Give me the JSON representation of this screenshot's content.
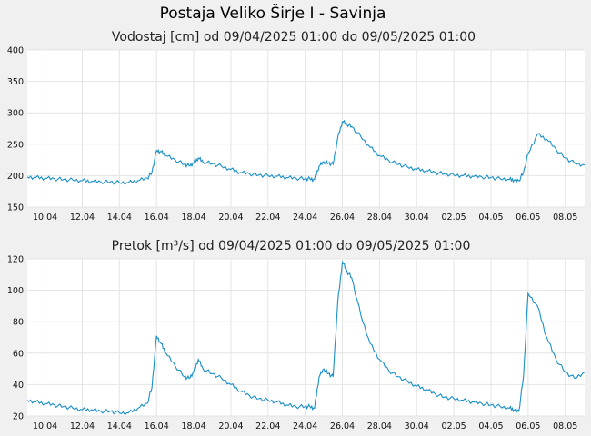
{
  "page": {
    "title": "Postaja Veliko Širje I - Savinja"
  },
  "colors": {
    "background": "#f0f0f0",
    "plot_background": "#ffffff",
    "grid": "#e4e4e4",
    "series": "#1a8fc8"
  },
  "chart_data": [
    {
      "id": "vodostaj",
      "type": "line",
      "title": "Vodostaj [cm] od 09/04/2025 01:00 do 09/05/2025 01:00",
      "xlabel": "",
      "ylabel": "",
      "ylim": [
        150,
        400
      ],
      "yticks": [
        150,
        200,
        250,
        300,
        350,
        400
      ],
      "xlim": [
        "2025-04-09 01:00",
        "2025-05-09 01:00"
      ],
      "xticks": [
        {
          "date": "2025-04-10",
          "label": "10.04"
        },
        {
          "date": "2025-04-12",
          "label": "12.04"
        },
        {
          "date": "2025-04-14",
          "label": "14.04"
        },
        {
          "date": "2025-04-16",
          "label": "16.04"
        },
        {
          "date": "2025-04-18",
          "label": "18.04"
        },
        {
          "date": "2025-04-20",
          "label": "20.04"
        },
        {
          "date": "2025-04-22",
          "label": "22.04"
        },
        {
          "date": "2025-04-24",
          "label": "24.04"
        },
        {
          "date": "2025-04-26",
          "label": "26.04"
        },
        {
          "date": "2025-04-28",
          "label": "28.04"
        },
        {
          "date": "2025-04-30",
          "label": "30.04"
        },
        {
          "date": "2025-05-02",
          "label": "02.05"
        },
        {
          "date": "2025-05-04",
          "label": "04.05"
        },
        {
          "date": "2025-05-06",
          "label": "06.05"
        },
        {
          "date": "2025-05-08",
          "label": "08.05"
        }
      ],
      "grid": true,
      "series": [
        {
          "x": [
            "2025-04-09 01:00",
            "2025-04-09 12:00",
            "2025-04-10 00:00",
            "2025-04-10 12:00",
            "2025-04-11 00:00",
            "2025-04-11 12:00",
            "2025-04-12 00:00",
            "2025-04-12 12:00",
            "2025-04-13 00:00",
            "2025-04-13 12:00",
            "2025-04-14 00:00",
            "2025-04-14 12:00",
            "2025-04-15 00:00",
            "2025-04-15 12:00",
            "2025-04-15 18:00",
            "2025-04-16 00:00",
            "2025-04-16 06:00",
            "2025-04-16 12:00",
            "2025-04-17 00:00",
            "2025-04-17 12:00",
            "2025-04-17 18:00",
            "2025-04-18 00:00",
            "2025-04-18 06:00",
            "2025-04-18 12:00",
            "2025-04-19 00:00",
            "2025-04-19 12:00",
            "2025-04-20 00:00",
            "2025-04-20 12:00",
            "2025-04-21 00:00",
            "2025-04-21 12:00",
            "2025-04-22 00:00",
            "2025-04-22 12:00",
            "2025-04-23 00:00",
            "2025-04-23 12:00",
            "2025-04-24 00:00",
            "2025-04-24 06:00",
            "2025-04-24 12:00",
            "2025-04-24 18:00",
            "2025-04-25 00:00",
            "2025-04-25 06:00",
            "2025-04-25 12:00",
            "2025-04-25 18:00",
            "2025-04-26 00:00",
            "2025-04-26 06:00",
            "2025-04-26 12:00",
            "2025-04-27 00:00",
            "2025-04-27 12:00",
            "2025-04-28 00:00",
            "2025-04-28 12:00",
            "2025-04-29 00:00",
            "2025-04-29 12:00",
            "2025-04-30 00:00",
            "2025-04-30 12:00",
            "2025-05-01 00:00",
            "2025-05-01 12:00",
            "2025-05-02 00:00",
            "2025-05-02 12:00",
            "2025-05-03 00:00",
            "2025-05-03 12:00",
            "2025-05-04 00:00",
            "2025-05-04 12:00",
            "2025-05-05 00:00",
            "2025-05-05 06:00",
            "2025-05-05 12:00",
            "2025-05-05 18:00",
            "2025-05-06 00:00",
            "2025-05-06 12:00",
            "2025-05-07 00:00",
            "2025-05-07 12:00",
            "2025-05-08 00:00",
            "2025-05-08 12:00",
            "2025-05-09 01:00"
          ],
          "y": [
            198,
            197,
            196,
            195,
            194,
            193,
            192,
            191,
            190,
            190,
            189,
            189,
            192,
            196,
            205,
            240,
            238,
            232,
            225,
            218,
            216,
            220,
            228,
            222,
            219,
            215,
            210,
            205,
            203,
            201,
            200,
            199,
            197,
            196,
            195,
            195,
            194,
            215,
            222,
            220,
            218,
            260,
            286,
            282,
            278,
            262,
            245,
            232,
            224,
            218,
            214,
            210,
            208,
            205,
            203,
            201,
            200,
            199,
            198,
            197,
            195,
            194,
            193,
            192,
            205,
            235,
            266,
            258,
            242,
            228,
            220,
            217
          ]
        }
      ]
    },
    {
      "id": "pretok",
      "type": "line",
      "title": "Pretok [m³/s] od 09/04/2025 01:00 do 09/05/2025 01:00",
      "xlabel": "",
      "ylabel": "",
      "ylim": [
        20,
        120
      ],
      "yticks": [
        20,
        40,
        60,
        80,
        100,
        120
      ],
      "xlim": [
        "2025-04-09 01:00",
        "2025-05-09 01:00"
      ],
      "xticks": [
        {
          "date": "2025-04-10",
          "label": "10.04"
        },
        {
          "date": "2025-04-12",
          "label": "12.04"
        },
        {
          "date": "2025-04-14",
          "label": "14.04"
        },
        {
          "date": "2025-04-16",
          "label": "16.04"
        },
        {
          "date": "2025-04-18",
          "label": "18.04"
        },
        {
          "date": "2025-04-20",
          "label": "20.04"
        },
        {
          "date": "2025-04-22",
          "label": "22.04"
        },
        {
          "date": "2025-04-24",
          "label": "24.04"
        },
        {
          "date": "2025-04-26",
          "label": "26.04"
        },
        {
          "date": "2025-04-28",
          "label": "28.04"
        },
        {
          "date": "2025-04-30",
          "label": "30.04"
        },
        {
          "date": "2025-05-02",
          "label": "02.05"
        },
        {
          "date": "2025-05-04",
          "label": "04.05"
        },
        {
          "date": "2025-05-06",
          "label": "06.05"
        },
        {
          "date": "2025-05-08",
          "label": "08.05"
        }
      ],
      "grid": true,
      "series": [
        {
          "x": [
            "2025-04-09 01:00",
            "2025-04-09 12:00",
            "2025-04-10 00:00",
            "2025-04-10 12:00",
            "2025-04-11 00:00",
            "2025-04-11 12:00",
            "2025-04-12 00:00",
            "2025-04-12 12:00",
            "2025-04-13 00:00",
            "2025-04-13 12:00",
            "2025-04-14 00:00",
            "2025-04-14 12:00",
            "2025-04-15 00:00",
            "2025-04-15 12:00",
            "2025-04-15 18:00",
            "2025-04-16 00:00",
            "2025-04-16 06:00",
            "2025-04-16 12:00",
            "2025-04-17 00:00",
            "2025-04-17 12:00",
            "2025-04-17 18:00",
            "2025-04-18 00:00",
            "2025-04-18 06:00",
            "2025-04-18 12:00",
            "2025-04-19 00:00",
            "2025-04-19 12:00",
            "2025-04-20 00:00",
            "2025-04-20 12:00",
            "2025-04-21 00:00",
            "2025-04-21 12:00",
            "2025-04-22 00:00",
            "2025-04-22 12:00",
            "2025-04-23 00:00",
            "2025-04-23 12:00",
            "2025-04-24 00:00",
            "2025-04-24 06:00",
            "2025-04-24 12:00",
            "2025-04-24 18:00",
            "2025-04-25 00:00",
            "2025-04-25 06:00",
            "2025-04-25 12:00",
            "2025-04-25 18:00",
            "2025-04-26 00:00",
            "2025-04-26 06:00",
            "2025-04-26 12:00",
            "2025-04-27 00:00",
            "2025-04-27 12:00",
            "2025-04-28 00:00",
            "2025-04-28 12:00",
            "2025-04-29 00:00",
            "2025-04-29 12:00",
            "2025-04-30 00:00",
            "2025-04-30 12:00",
            "2025-05-01 00:00",
            "2025-05-01 12:00",
            "2025-05-02 00:00",
            "2025-05-02 12:00",
            "2025-05-03 00:00",
            "2025-05-03 12:00",
            "2025-05-04 00:00",
            "2025-05-04 12:00",
            "2025-05-05 00:00",
            "2025-05-05 06:00",
            "2025-05-05 12:00",
            "2025-05-05 18:00",
            "2025-05-06 00:00",
            "2025-05-06 12:00",
            "2025-05-07 00:00",
            "2025-05-07 12:00",
            "2025-05-08 00:00",
            "2025-05-08 12:00",
            "2025-05-09 01:00"
          ],
          "y": [
            30,
            29,
            28,
            27,
            26,
            25,
            24,
            24,
            23,
            23,
            22,
            22,
            25,
            28,
            38,
            71,
            66,
            60,
            52,
            45,
            44,
            48,
            56,
            50,
            47,
            44,
            40,
            36,
            33,
            31,
            30,
            29,
            27,
            26,
            26,
            26,
            25,
            45,
            50,
            47,
            45,
            92,
            118,
            112,
            108,
            84,
            66,
            56,
            49,
            45,
            42,
            39,
            37,
            34,
            32,
            31,
            30,
            29,
            28,
            27,
            26,
            25,
            24,
            23,
            45,
            98,
            90,
            70,
            56,
            48,
            44,
            48
          ]
        }
      ]
    }
  ]
}
